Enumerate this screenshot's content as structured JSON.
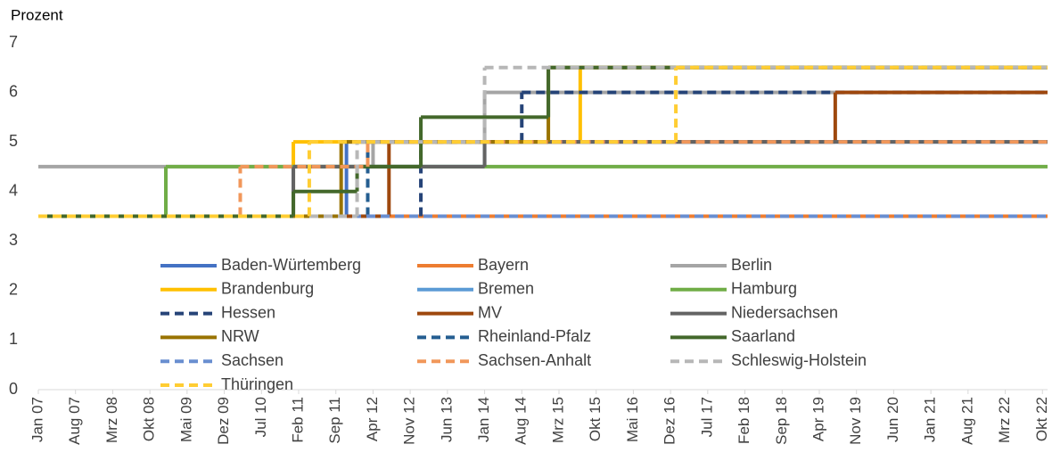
{
  "chart_data": {
    "type": "step-line",
    "y_label": "Prozent",
    "ylim": [
      0,
      7
    ],
    "yticks": [
      0,
      1,
      2,
      3,
      4,
      5,
      6,
      7
    ],
    "xlim": [
      2007,
      2022.83
    ],
    "xticks": [
      {
        "value": 2007,
        "label": "Jan 07"
      },
      {
        "value": 2007.583,
        "label": "Aug 07"
      },
      {
        "value": 2008.167,
        "label": "Mrz 08"
      },
      {
        "value": 2008.75,
        "label": "Okt 08"
      },
      {
        "value": 2009.333,
        "label": "Mai 09"
      },
      {
        "value": 2009.917,
        "label": "Dez 09"
      },
      {
        "value": 2010.5,
        "label": "Jul 10"
      },
      {
        "value": 2011.083,
        "label": "Feb 11"
      },
      {
        "value": 2011.667,
        "label": "Sep 11"
      },
      {
        "value": 2012.25,
        "label": "Apr 12"
      },
      {
        "value": 2012.833,
        "label": "Nov 12"
      },
      {
        "value": 2013.417,
        "label": "Jun 13"
      },
      {
        "value": 2014,
        "label": "Jan 14"
      },
      {
        "value": 2014.583,
        "label": "Aug 14"
      },
      {
        "value": 2015.167,
        "label": "Mrz 15"
      },
      {
        "value": 2015.75,
        "label": "Okt 15"
      },
      {
        "value": 2016.333,
        "label": "Mai 16"
      },
      {
        "value": 2016.917,
        "label": "Dez 16"
      },
      {
        "value": 2017.5,
        "label": "Jul 17"
      },
      {
        "value": 2018.083,
        "label": "Feb 18"
      },
      {
        "value": 2018.667,
        "label": "Sep 18"
      },
      {
        "value": 2019.25,
        "label": "Apr 19"
      },
      {
        "value": 2019.833,
        "label": "Nov 19"
      },
      {
        "value": 2020.417,
        "label": "Jun 20"
      },
      {
        "value": 2021,
        "label": "Jan 21"
      },
      {
        "value": 2021.583,
        "label": "Aug 21"
      },
      {
        "value": 2022.167,
        "label": "Mrz 22"
      },
      {
        "value": 2022.75,
        "label": "Okt 22"
      }
    ],
    "series": [
      {
        "name": "Baden-Würtemberg",
        "color": "#4472C4",
        "style": "solid",
        "x": [
          2007,
          2011.833
        ],
        "values": [
          3.5,
          5
        ]
      },
      {
        "name": "Bayern",
        "color": "#ED7D31",
        "style": "solid",
        "x": [
          2007
        ],
        "values": [
          3.5
        ]
      },
      {
        "name": "Berlin",
        "color": "#A5A5A5",
        "style": "solid",
        "x": [
          2007,
          2012.25,
          2014
        ],
        "values": [
          4.5,
          5,
          6
        ]
      },
      {
        "name": "Brandenburg",
        "color": "#FFC000",
        "style": "solid",
        "x": [
          2007,
          2011,
          2015.5
        ],
        "values": [
          3.5,
          5,
          6.5
        ]
      },
      {
        "name": "Bremen",
        "color": "#5B9BD5",
        "style": "solid",
        "x": [
          2007,
          2011,
          2014
        ],
        "values": [
          3.5,
          4.5,
          5
        ]
      },
      {
        "name": "Hamburg",
        "color": "#70AD47",
        "style": "solid",
        "x": [
          2007,
          2009
        ],
        "values": [
          3.5,
          4.5
        ]
      },
      {
        "name": "Hessen",
        "color": "#264478",
        "style": "dashed",
        "x": [
          2007,
          2013,
          2014.583
        ],
        "values": [
          3.5,
          5,
          6
        ]
      },
      {
        "name": "MV",
        "color": "#9E480E",
        "style": "solid",
        "x": [
          2007,
          2012.5,
          2019.5
        ],
        "values": [
          3.5,
          5,
          6
        ]
      },
      {
        "name": "Niedersachsen",
        "color": "#636363",
        "style": "solid",
        "x": [
          2007,
          2011,
          2014
        ],
        "values": [
          3.5,
          4.5,
          5
        ]
      },
      {
        "name": "NRW",
        "color": "#997300",
        "style": "solid",
        "x": [
          2007,
          2011.75,
          2015
        ],
        "values": [
          3.5,
          5,
          6.5
        ]
      },
      {
        "name": "Rheinland-Pfalz",
        "color": "#255E91",
        "style": "dashed",
        "x": [
          2007,
          2012.167
        ],
        "values": [
          3.5,
          5
        ]
      },
      {
        "name": "Saarland",
        "color": "#43682B",
        "style": "solid",
        "x": [
          2007,
          2011,
          2012,
          2013,
          2015
        ],
        "values": [
          3.5,
          4,
          4.5,
          5.5,
          6.5
        ]
      },
      {
        "name": "Sachsen",
        "color": "#698ED0",
        "style": "dashed",
        "x": [
          2007
        ],
        "values": [
          3.5
        ]
      },
      {
        "name": "Sachsen-Anhalt",
        "color": "#F1975A",
        "style": "dashed",
        "x": [
          2007,
          2010.167,
          2012.167
        ],
        "values": [
          3.5,
          4.5,
          5
        ]
      },
      {
        "name": "Schleswig-Holstein",
        "color": "#B7B7B7",
        "style": "dashed",
        "x": [
          2007,
          2012,
          2014
        ],
        "values": [
          3.5,
          5,
          6.5
        ]
      },
      {
        "name": "Thüringen",
        "color": "#FFCD33",
        "style": "dashed",
        "x": [
          2007,
          2011.25,
          2017
        ],
        "values": [
          3.5,
          5,
          6.5
        ]
      }
    ]
  }
}
